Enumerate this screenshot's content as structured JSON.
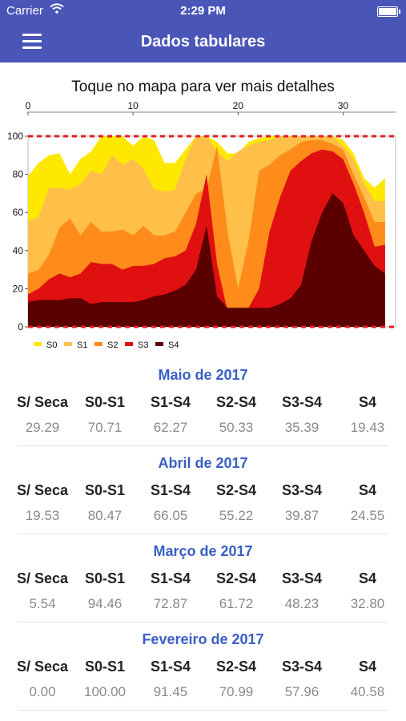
{
  "status": {
    "carrier": "Carrier",
    "time": "2:29 PM"
  },
  "nav": {
    "title": "Dados tabulares"
  },
  "chart_title": "Toque no mapa para ver mais detalhes",
  "columns": [
    "S/ Seca",
    "S0-S1",
    "S1-S4",
    "S2-S4",
    "S3-S4",
    "S4"
  ],
  "sections": [
    {
      "title": "Maio de 2017",
      "values": [
        "29.29",
        "70.71",
        "62.27",
        "50.33",
        "35.39",
        "19.43"
      ]
    },
    {
      "title": "Abril de 2017",
      "values": [
        "19.53",
        "80.47",
        "66.05",
        "55.22",
        "39.87",
        "24.55"
      ]
    },
    {
      "title": "Março de 2017",
      "values": [
        "5.54",
        "94.46",
        "72.87",
        "61.72",
        "48.23",
        "32.80"
      ]
    },
    {
      "title": "Fevereiro de 2017",
      "values": [
        "0.00",
        "100.00",
        "91.45",
        "70.99",
        "57.96",
        "40.58"
      ]
    }
  ],
  "chart_data": {
    "type": "area",
    "x": [
      0,
      1,
      2,
      3,
      4,
      5,
      6,
      7,
      8,
      9,
      10,
      11,
      12,
      13,
      14,
      15,
      16,
      17,
      18,
      19,
      20,
      21,
      22,
      23,
      24,
      25,
      26,
      27,
      28,
      29,
      30,
      31,
      32,
      33,
      34
    ],
    "xticks": [
      0,
      10,
      20,
      30
    ],
    "yticks": [
      0,
      20,
      40,
      60,
      80,
      100
    ],
    "xlim": [
      0,
      35
    ],
    "ylim": [
      0,
      100
    ],
    "reference_lines": [
      0,
      100
    ],
    "series": [
      {
        "name": "S0",
        "color": "#ffe800",
        "values": [
          79,
          86,
          90,
          91,
          80,
          88,
          92,
          100,
          100,
          100,
          95,
          100,
          98,
          86,
          86,
          93,
          100,
          100,
          97,
          91,
          91,
          97,
          99,
          100,
          100,
          100,
          100,
          100,
          100,
          100,
          98,
          91,
          78,
          73,
          78
        ]
      },
      {
        "name": "S1",
        "color": "#ffc04a",
        "values": [
          55,
          58,
          73,
          73,
          72,
          75,
          82,
          80,
          90,
          85,
          88,
          83,
          72,
          71,
          72,
          88,
          100,
          100,
          92,
          87,
          92,
          95,
          97,
          98,
          100,
          100,
          100,
          100,
          100,
          100,
          95,
          88,
          75,
          66,
          66
        ]
      },
      {
        "name": "S2",
        "color": "#ff8c1a",
        "values": [
          28,
          30,
          38,
          52,
          57,
          48,
          55,
          50,
          50,
          51,
          48,
          53,
          48,
          48,
          50,
          60,
          70,
          72,
          95,
          50,
          20,
          45,
          82,
          85,
          90,
          93,
          97,
          98,
          98,
          96,
          93,
          80,
          68,
          55,
          55
        ]
      },
      {
        "name": "S3",
        "color": "#e01010",
        "values": [
          17,
          20,
          25,
          28,
          26,
          28,
          34,
          33,
          33,
          30,
          32,
          32,
          33,
          36,
          37,
          40,
          54,
          80,
          33,
          8,
          8,
          10,
          20,
          50,
          68,
          82,
          87,
          91,
          93,
          92,
          88,
          75,
          60,
          42,
          43
        ]
      },
      {
        "name": "S4",
        "color": "#5a0000",
        "values": [
          13,
          14,
          14,
          14,
          15,
          15,
          12,
          13,
          13,
          13,
          13,
          14,
          16,
          17,
          19,
          22,
          30,
          53,
          16,
          10,
          10,
          10,
          10,
          10,
          12,
          15,
          22,
          45,
          60,
          70,
          65,
          48,
          40,
          32,
          28
        ]
      }
    ]
  }
}
